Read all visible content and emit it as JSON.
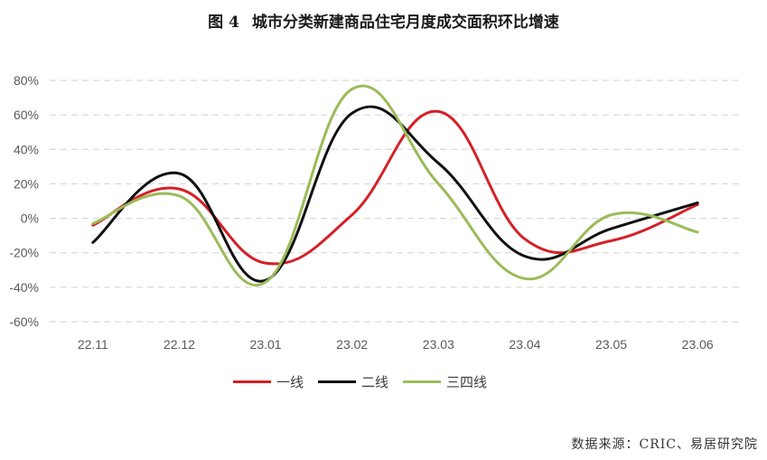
{
  "title": {
    "figure": "图 4",
    "text": "城市分类新建商品住宅月度成交面积环比增速"
  },
  "source": "数据来源：CRIC、易居研究院",
  "chart_data": {
    "type": "line",
    "categories": [
      "22.11",
      "22.12",
      "23.01",
      "23.02",
      "23.03",
      "23.04",
      "23.05",
      "23.06"
    ],
    "y_ticks": [
      "80%",
      "60%",
      "40%",
      "20%",
      "0%",
      "-20%",
      "-40%",
      "-60%"
    ],
    "ylim": [
      -60,
      80
    ],
    "y_unit": "%",
    "grid": "dashed horizontal",
    "legend_position": "bottom",
    "series": [
      {
        "name": "一线",
        "color": "#d42027",
        "values": [
          -4,
          17,
          -26,
          2,
          62,
          -12,
          -13,
          8
        ]
      },
      {
        "name": "二线",
        "color": "#111111",
        "values": [
          -14,
          26,
          -36,
          61,
          32,
          -22,
          -6,
          9
        ]
      },
      {
        "name": "三四线",
        "color": "#9bbb59",
        "values": [
          -3,
          13,
          -37,
          75,
          20,
          -35,
          2,
          -8
        ]
      }
    ]
  }
}
